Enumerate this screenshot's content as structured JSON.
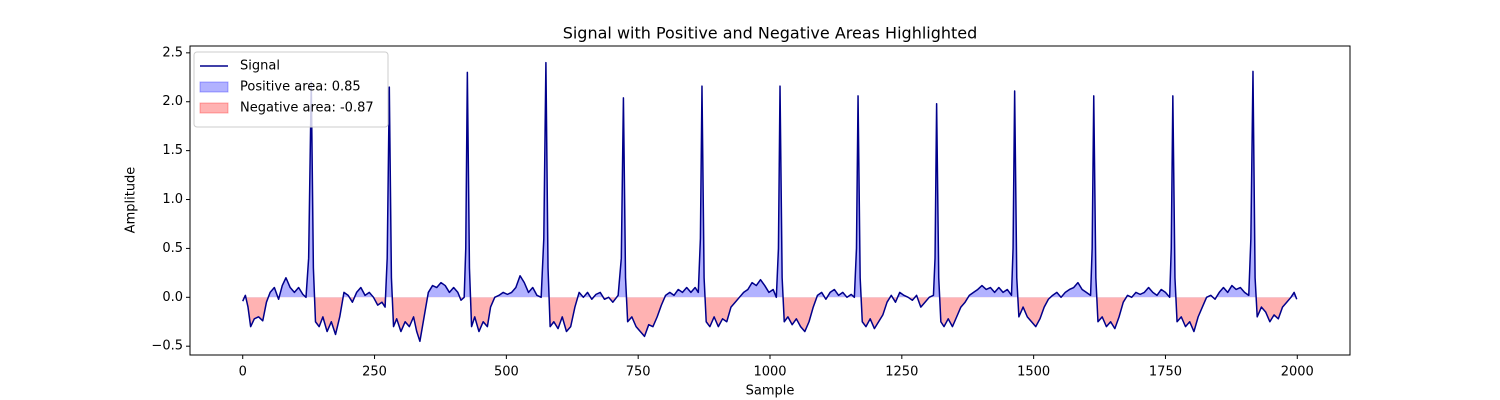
{
  "chart_data": {
    "type": "line",
    "title": "Signal with Positive and Negative Areas Highlighted",
    "xlabel": "Sample",
    "ylabel": "Amplitude",
    "xlim": [
      -100,
      2100
    ],
    "ylim": [
      -0.59,
      2.57
    ],
    "xticks": [
      0,
      250,
      500,
      750,
      1000,
      1250,
      1500,
      1750,
      2000
    ],
    "yticks": [
      {
        "value": -0.5,
        "label": "−0.5"
      },
      {
        "value": 0,
        "label": "0.0"
      },
      0.5,
      {
        "value": 1,
        "label": "1.0"
      },
      1.5,
      {
        "value": 2,
        "label": "2.0"
      },
      2.5
    ],
    "legend": "upper left",
    "x": [
      0,
      5,
      10,
      15,
      22,
      30,
      38,
      45,
      52,
      60,
      68,
      75,
      82,
      90,
      98,
      106,
      114,
      120,
      125,
      130,
      134,
      138,
      145,
      152,
      160,
      168,
      176,
      184,
      192,
      200,
      208,
      216,
      224,
      232,
      240,
      248,
      256,
      264,
      270,
      274,
      278,
      282,
      286,
      292,
      300,
      308,
      316,
      324,
      330,
      336,
      344,
      352,
      360,
      368,
      376,
      384,
      392,
      400,
      408,
      414,
      420,
      423,
      426,
      430,
      434,
      440,
      448,
      456,
      464,
      470,
      478,
      486,
      494,
      502,
      510,
      518,
      526,
      534,
      542,
      550,
      558,
      566,
      571,
      575,
      579,
      583,
      590,
      598,
      606,
      614,
      622,
      630,
      638,
      646,
      654,
      662,
      670,
      678,
      686,
      694,
      702,
      712,
      718,
      722,
      726,
      730,
      738,
      746,
      754,
      762,
      770,
      778,
      786,
      794,
      802,
      810,
      818,
      826,
      834,
      842,
      850,
      858,
      864,
      868,
      871,
      875,
      879,
      886,
      894,
      902,
      910,
      918,
      926,
      934,
      942,
      950,
      958,
      966,
      974,
      982,
      990,
      998,
      1006,
      1012,
      1016,
      1019,
      1023,
      1027,
      1034,
      1042,
      1050,
      1058,
      1066,
      1074,
      1082,
      1090,
      1098,
      1106,
      1114,
      1122,
      1130,
      1138,
      1146,
      1154,
      1160,
      1164,
      1167,
      1171,
      1175,
      1182,
      1190,
      1198,
      1206,
      1214,
      1222,
      1230,
      1238,
      1246,
      1254,
      1262,
      1270,
      1278,
      1286,
      1294,
      1302,
      1310,
      1313,
      1316,
      1320,
      1324,
      1330,
      1338,
      1346,
      1354,
      1362,
      1370,
      1378,
      1386,
      1394,
      1402,
      1410,
      1418,
      1426,
      1434,
      1442,
      1450,
      1458,
      1461,
      1464,
      1468,
      1472,
      1480,
      1488,
      1496,
      1504,
      1512,
      1520,
      1528,
      1536,
      1544,
      1552,
      1560,
      1568,
      1576,
      1584,
      1592,
      1600,
      1608,
      1611,
      1614,
      1618,
      1622,
      1630,
      1638,
      1646,
      1654,
      1662,
      1670,
      1678,
      1686,
      1694,
      1702,
      1710,
      1718,
      1726,
      1734,
      1742,
      1750,
      1758,
      1761,
      1764,
      1768,
      1772,
      1780,
      1788,
      1796,
      1804,
      1812,
      1820,
      1828,
      1836,
      1844,
      1852,
      1860,
      1868,
      1876,
      1884,
      1892,
      1900,
      1908,
      1912,
      1916,
      1920,
      1924,
      1932,
      1940,
      1948,
      1956,
      1964,
      1972,
      1980,
      1988,
      1994,
      1999
    ],
    "series": [
      {
        "name": "Signal",
        "color": "#00008b",
        "values": [
          -0.04,
          0.02,
          -0.1,
          -0.3,
          -0.22,
          -0.2,
          -0.24,
          -0.05,
          0.05,
          0.1,
          -0.02,
          0.12,
          0.2,
          0.1,
          0.05,
          0.1,
          0.03,
          0.0,
          0.4,
          2.2,
          0.3,
          -0.25,
          -0.3,
          -0.2,
          -0.35,
          -0.25,
          -0.38,
          -0.2,
          0.05,
          0.02,
          -0.05,
          0.05,
          0.1,
          0.02,
          0.05,
          0.0,
          -0.08,
          -0.05,
          -0.1,
          0.4,
          2.15,
          0.2,
          -0.3,
          -0.22,
          -0.35,
          -0.25,
          -0.3,
          -0.2,
          -0.35,
          -0.45,
          -0.2,
          0.05,
          0.12,
          0.1,
          0.15,
          0.12,
          0.05,
          0.1,
          0.05,
          -0.03,
          0.0,
          0.5,
          2.3,
          0.3,
          -0.3,
          -0.2,
          -0.35,
          -0.25,
          -0.3,
          -0.1,
          0.0,
          0.02,
          0.05,
          0.03,
          0.05,
          0.1,
          0.22,
          0.15,
          0.05,
          0.1,
          0.02,
          0.0,
          0.6,
          2.4,
          0.3,
          -0.3,
          -0.25,
          -0.32,
          -0.2,
          -0.35,
          -0.3,
          -0.1,
          0.05,
          0.0,
          0.05,
          -0.02,
          0.03,
          0.05,
          -0.02,
          0.0,
          -0.05,
          0.02,
          0.4,
          2.04,
          0.2,
          -0.25,
          -0.2,
          -0.3,
          -0.35,
          -0.4,
          -0.28,
          -0.3,
          -0.2,
          -0.08,
          0.02,
          0.05,
          0.02,
          0.08,
          0.05,
          0.1,
          0.05,
          0.1,
          0.05,
          0.6,
          2.16,
          0.2,
          -0.25,
          -0.3,
          -0.2,
          -0.3,
          -0.22,
          -0.25,
          -0.1,
          -0.05,
          0.0,
          0.05,
          0.08,
          0.15,
          0.12,
          0.18,
          0.12,
          0.05,
          0.08,
          0.0,
          0.5,
          2.16,
          0.2,
          -0.25,
          -0.2,
          -0.28,
          -0.22,
          -0.3,
          -0.35,
          -0.25,
          -0.1,
          0.02,
          0.05,
          -0.02,
          0.05,
          0.08,
          0.02,
          0.05,
          0.0,
          0.03,
          0.0,
          0.5,
          2.06,
          0.2,
          -0.25,
          -0.3,
          -0.22,
          -0.32,
          -0.25,
          -0.18,
          -0.05,
          0.02,
          -0.05,
          0.05,
          0.02,
          0.0,
          -0.03,
          0.02,
          -0.1,
          -0.05,
          0.0,
          0.02,
          0.4,
          1.98,
          0.2,
          -0.25,
          -0.3,
          -0.22,
          -0.3,
          -0.2,
          -0.1,
          -0.05,
          0.02,
          0.05,
          0.08,
          0.12,
          0.08,
          0.1,
          0.05,
          0.1,
          0.05,
          0.08,
          0.02,
          0.5,
          2.11,
          0.2,
          -0.2,
          -0.1,
          -0.2,
          -0.25,
          -0.3,
          -0.22,
          -0.1,
          -0.02,
          0.02,
          0.05,
          0.0,
          0.05,
          0.08,
          0.1,
          0.15,
          0.08,
          0.05,
          0.02,
          0.5,
          2.06,
          0.2,
          -0.25,
          -0.2,
          -0.3,
          -0.25,
          -0.32,
          -0.2,
          -0.05,
          0.02,
          0.0,
          0.05,
          0.03,
          0.05,
          0.1,
          0.05,
          0.02,
          0.08,
          0.05,
          0.0,
          0.5,
          2.06,
          0.2,
          -0.25,
          -0.2,
          -0.3,
          -0.25,
          -0.35,
          -0.2,
          -0.1,
          0.0,
          0.02,
          -0.02,
          0.05,
          0.1,
          0.05,
          0.12,
          0.08,
          0.1,
          0.05,
          0.02,
          0.6,
          2.31,
          0.2,
          -0.2,
          -0.1,
          -0.15,
          -0.25,
          -0.18,
          -0.22,
          -0.1,
          -0.05,
          0.0,
          0.05,
          -0.02
        ]
      }
    ],
    "fills": [
      {
        "name": "Positive area: 0.85",
        "color": "#0000ff",
        "side": "positive"
      },
      {
        "name": "Negative area: -0.87",
        "color": "#ff0000",
        "side": "negative"
      }
    ]
  }
}
